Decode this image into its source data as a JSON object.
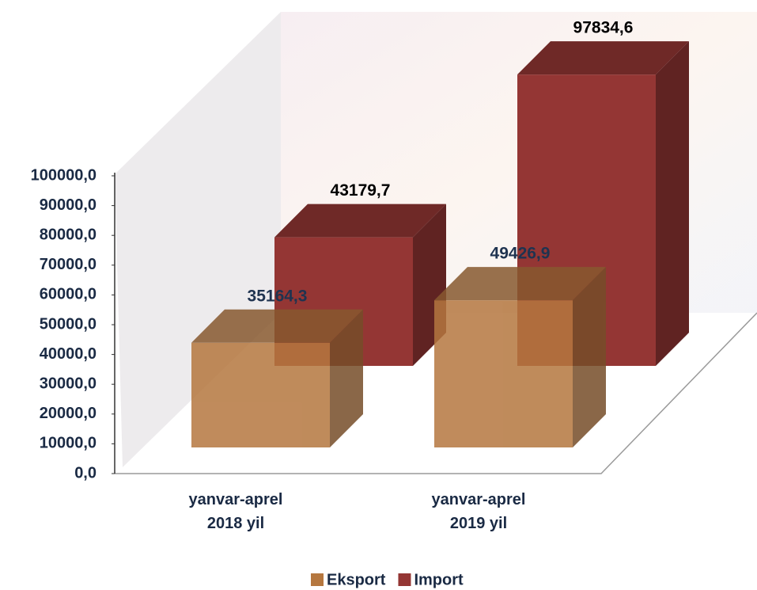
{
  "chart_data": {
    "type": "bar3d",
    "categories": [
      "yanvar-aprel 2018 yil",
      "yanvar-aprel 2019 yil"
    ],
    "series": [
      {
        "name": "Eksport",
        "color": "#b5773f",
        "values": [
          35164.3,
          49426.9
        ],
        "value_labels": [
          "35164,3",
          "49426,9"
        ]
      },
      {
        "name": "Import",
        "color": "#943634",
        "values": [
          43179.7,
          97834.6
        ],
        "value_labels": [
          "43179,7",
          "97834,6"
        ]
      }
    ],
    "ylim": [
      0,
      100000
    ],
    "yticks": [
      {
        "value": 0,
        "label": "0,0"
      },
      {
        "value": 10000,
        "label": "10000,0"
      },
      {
        "value": 20000,
        "label": "20000,0"
      },
      {
        "value": 30000,
        "label": "30000,0"
      },
      {
        "value": 40000,
        "label": "40000,0"
      },
      {
        "value": 50000,
        "label": "50000,0"
      },
      {
        "value": 60000,
        "label": "60000,0"
      },
      {
        "value": 70000,
        "label": "70000,0"
      },
      {
        "value": 80000,
        "label": "80000,0"
      },
      {
        "value": 90000,
        "label": "90000,0"
      },
      {
        "value": 100000,
        "label": "100000,0"
      }
    ],
    "legend": "bottom"
  }
}
